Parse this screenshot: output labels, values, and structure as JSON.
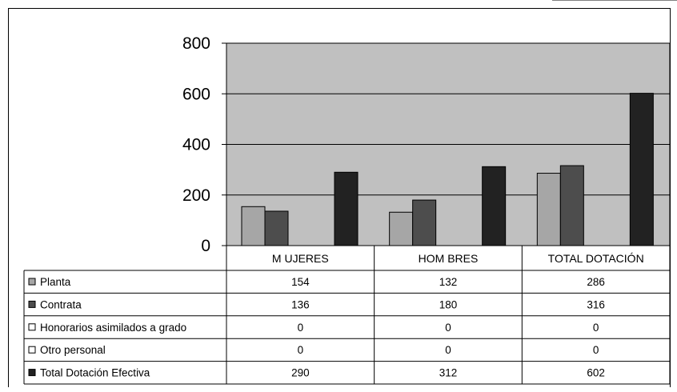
{
  "chart_data": {
    "type": "bar",
    "categories": [
      "MUJERES",
      "HOMBRES",
      "TOTAL DOTACIÓN"
    ],
    "category_labels": [
      "M UJERES",
      "HOM BRES",
      "TOTAL DOTACIÓN"
    ],
    "ylim": [
      0,
      800
    ],
    "yticks": [
      0,
      200,
      400,
      600,
      800
    ],
    "ytick_labels": [
      "0",
      "200",
      "400",
      "600",
      "800"
    ],
    "grid": true,
    "series": [
      {
        "name": "Planta",
        "values": [
          154,
          132,
          286
        ],
        "display": [
          "154",
          "132",
          "286"
        ],
        "color": "#a6a6a6"
      },
      {
        "name": "Contrata",
        "values": [
          136,
          180,
          316
        ],
        "display": [
          "136",
          "180",
          "316"
        ],
        "color": "#4d4d4d"
      },
      {
        "name": "Honorarios asimilados a grado",
        "values": [
          0,
          0,
          0
        ],
        "display": [
          "0",
          "0",
          "0"
        ],
        "color": "#ffffff"
      },
      {
        "name": "Otro personal",
        "values": [
          0,
          0,
          0
        ],
        "display": [
          "0",
          "0",
          "0"
        ],
        "color": "#ffffff"
      },
      {
        "name": "Total Dotación Efectiva",
        "values": [
          290,
          312,
          602
        ],
        "display": [
          "290",
          "312",
          "602"
        ],
        "color": "#222222"
      }
    ],
    "plot_bg": "#c0c0c0"
  }
}
